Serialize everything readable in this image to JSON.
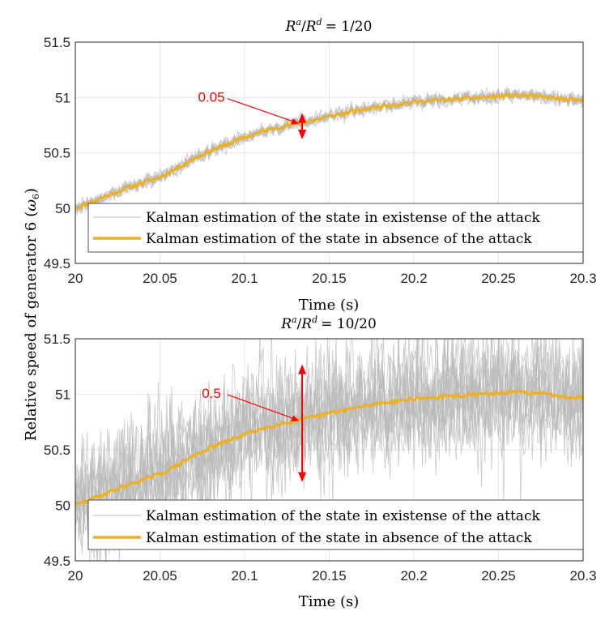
{
  "chart_data": [
    {
      "type": "line",
      "title": "R^a/R^d = 1/20",
      "title_parts": {
        "a": "R",
        "a_sup": "a",
        "slash": "/",
        "b": "R",
        "b_sup": "d",
        "rhs": "= 1/20"
      },
      "xlabel": "Time (s)",
      "xlim": [
        20,
        20.3
      ],
      "ylim": [
        49.5,
        51.5
      ],
      "xticks": [
        "20",
        "20.05",
        "20.1",
        "20.15",
        "20.2",
        "20.25",
        "20.3"
      ],
      "yticks": [
        "49.5",
        "50",
        "50.5",
        "51",
        "51.5"
      ],
      "grid": true,
      "legend_position": "bottom",
      "series": [
        {
          "name": "Kalman estimation of the state in existense of the attack",
          "color": "#b8b8b8",
          "spread": 0.05
        },
        {
          "name": "Kalman estimation of the state in absence of the attack",
          "color": "#edb120",
          "x": [
            20,
            20.01,
            20.02,
            20.03,
            20.04,
            20.05,
            20.06,
            20.07,
            20.08,
            20.09,
            20.1,
            20.11,
            20.12,
            20.13,
            20.14,
            20.15,
            20.16,
            20.17,
            20.18,
            20.19,
            20.2,
            20.21,
            20.22,
            20.23,
            20.24,
            20.25,
            20.26,
            20.27,
            20.28,
            20.29,
            20.3
          ],
          "y": [
            50.0,
            50.06,
            50.12,
            50.18,
            50.23,
            50.28,
            50.36,
            50.45,
            50.52,
            50.58,
            50.64,
            50.69,
            50.73,
            50.76,
            50.79,
            50.83,
            50.86,
            50.89,
            50.92,
            50.94,
            50.96,
            50.97,
            50.98,
            50.99,
            51.0,
            51.01,
            51.02,
            51.01,
            51.0,
            50.98,
            50.97
          ]
        }
      ],
      "annotation": {
        "text": "0.05",
        "x": 20.134,
        "y": 50.74,
        "color": "#ff0000"
      }
    },
    {
      "type": "line",
      "title": "R^a/R^d = 10/20",
      "title_parts": {
        "a": "R",
        "a_sup": "a",
        "slash": "/",
        "b": "R",
        "b_sup": "d",
        "rhs": "= 10/20"
      },
      "xlabel": "Time (s)",
      "xlim": [
        20,
        20.3
      ],
      "ylim": [
        49.5,
        51.5
      ],
      "xticks": [
        "20",
        "20.05",
        "20.1",
        "20.15",
        "20.2",
        "20.25",
        "20.3"
      ],
      "yticks": [
        "49.5",
        "50",
        "50.5",
        "51",
        "51.5"
      ],
      "grid": true,
      "legend_position": "bottom",
      "series": [
        {
          "name": "Kalman estimation of the state in existense of the attack",
          "color": "#b8b8b8",
          "spread": 0.5
        },
        {
          "name": "Kalman estimation of the state in absence of the attack",
          "color": "#edb120",
          "x": [
            20,
            20.01,
            20.02,
            20.03,
            20.04,
            20.05,
            20.06,
            20.07,
            20.08,
            20.09,
            20.1,
            20.11,
            20.12,
            20.13,
            20.14,
            20.15,
            20.16,
            20.17,
            20.18,
            20.19,
            20.2,
            20.21,
            20.22,
            20.23,
            20.24,
            20.25,
            20.26,
            20.27,
            20.28,
            20.29,
            20.3
          ],
          "y": [
            50.0,
            50.06,
            50.12,
            50.18,
            50.23,
            50.28,
            50.36,
            50.45,
            50.52,
            50.58,
            50.64,
            50.69,
            50.73,
            50.76,
            50.79,
            50.83,
            50.86,
            50.89,
            50.92,
            50.94,
            50.96,
            50.97,
            50.98,
            50.99,
            51.0,
            51.01,
            51.02,
            51.01,
            51.0,
            50.98,
            50.97
          ]
        }
      ],
      "annotation": {
        "text": "0.5",
        "x": 20.134,
        "y": 50.74,
        "color": "#ff0000"
      }
    }
  ],
  "shared_ylabel": {
    "text": "Relative speed of generator 6",
    "symbol": "ω",
    "sub": "6"
  }
}
